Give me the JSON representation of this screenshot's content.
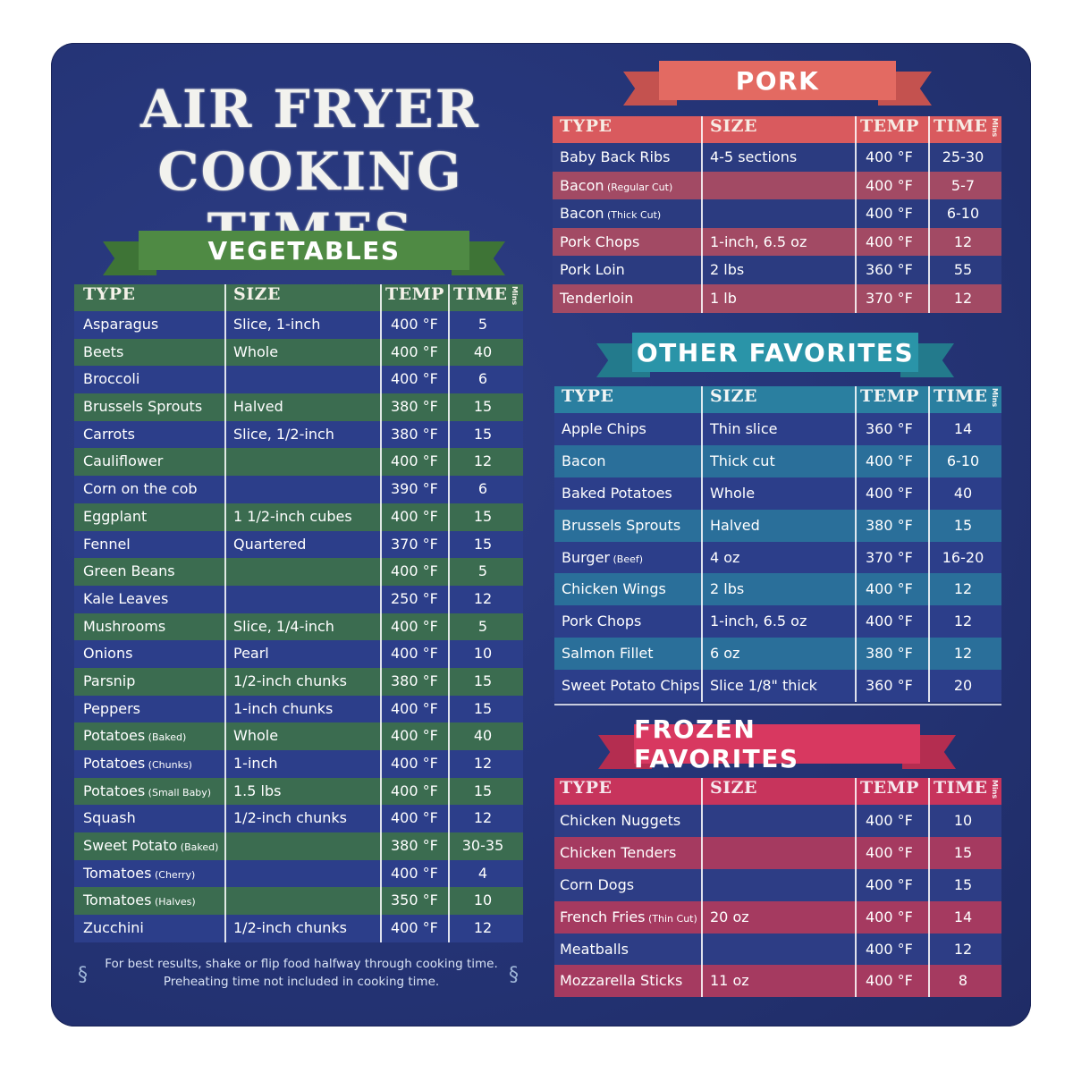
{
  "title": {
    "line1": "AIR FRYER",
    "line2": "COOKING TIMES"
  },
  "headers": {
    "type": "TYPE",
    "size": "SIZE",
    "temp": "TEMP",
    "time": "TIME",
    "mins": "Mins"
  },
  "unit": "°F",
  "colors": {
    "board": "#26367a",
    "veg_banner": "#4f8a44",
    "veg_header": "#3f7050",
    "pork_banner": "#e36a62",
    "pork_header": "#d95a5e",
    "other_banner": "#2a94a8",
    "other_header": "#2a7fa0",
    "frozen_banner": "#d83860",
    "frozen_header": "#c7345c"
  },
  "vegetables": {
    "heading": "VEGETABLES",
    "rows": [
      {
        "type": "Asparagus",
        "note": "",
        "size": "Slice, 1-inch",
        "temp": "400",
        "time": "5"
      },
      {
        "type": "Beets",
        "note": "",
        "size": "Whole",
        "temp": "400",
        "time": "40"
      },
      {
        "type": "Broccoli",
        "note": "",
        "size": "",
        "temp": "400",
        "time": "6"
      },
      {
        "type": "Brussels Sprouts",
        "note": "",
        "size": "Halved",
        "temp": "380",
        "time": "15"
      },
      {
        "type": "Carrots",
        "note": "",
        "size": "Slice, 1/2-inch",
        "temp": "380",
        "time": "15"
      },
      {
        "type": "Cauliflower",
        "note": "",
        "size": "",
        "temp": "400",
        "time": "12"
      },
      {
        "type": "Corn on the cob",
        "note": "",
        "size": "",
        "temp": "390",
        "time": "6"
      },
      {
        "type": "Eggplant",
        "note": "",
        "size": "1 1/2-inch cubes",
        "temp": "400",
        "time": "15"
      },
      {
        "type": "Fennel",
        "note": "",
        "size": "Quartered",
        "temp": "370",
        "time": "15"
      },
      {
        "type": "Green Beans",
        "note": "",
        "size": "",
        "temp": "400",
        "time": "5"
      },
      {
        "type": "Kale Leaves",
        "note": "",
        "size": "",
        "temp": "250",
        "time": "12"
      },
      {
        "type": "Mushrooms",
        "note": "",
        "size": "Slice, 1/4-inch",
        "temp": "400",
        "time": "5"
      },
      {
        "type": "Onions",
        "note": "",
        "size": "Pearl",
        "temp": "400",
        "time": "10"
      },
      {
        "type": "Parsnip",
        "note": "",
        "size": "1/2-inch chunks",
        "temp": "380",
        "time": "15"
      },
      {
        "type": "Peppers",
        "note": "",
        "size": "1-inch chunks",
        "temp": "400",
        "time": "15"
      },
      {
        "type": "Potatoes",
        "note": "(Baked)",
        "size": "Whole",
        "temp": "400",
        "time": "40"
      },
      {
        "type": "Potatoes",
        "note": "(Chunks)",
        "size": "1-inch",
        "temp": "400",
        "time": "12"
      },
      {
        "type": "Potatoes",
        "note": "(Small Baby)",
        "size": "1.5 lbs",
        "temp": "400",
        "time": "15"
      },
      {
        "type": "Squash",
        "note": "",
        "size": "1/2-inch chunks",
        "temp": "400",
        "time": "12"
      },
      {
        "type": "Sweet Potato",
        "note": "(Baked)",
        "size": "",
        "temp": "380",
        "time": "30-35"
      },
      {
        "type": "Tomatoes",
        "note": "(Cherry)",
        "size": "",
        "temp": "400",
        "time": "4"
      },
      {
        "type": "Tomatoes",
        "note": "(Halves)",
        "size": "",
        "temp": "350",
        "time": "10"
      },
      {
        "type": "Zucchini",
        "note": "",
        "size": "1/2-inch chunks",
        "temp": "400",
        "time": "12"
      }
    ]
  },
  "pork": {
    "heading": "PORK",
    "rows": [
      {
        "type": "Baby Back Ribs",
        "note": "",
        "size": "4-5 sections",
        "temp": "400",
        "time": "25-30"
      },
      {
        "type": "Bacon",
        "note": "(Regular Cut)",
        "size": "",
        "temp": "400",
        "time": "5-7"
      },
      {
        "type": "Bacon",
        "note": "(Thick Cut)",
        "size": "",
        "temp": "400",
        "time": "6-10"
      },
      {
        "type": "Pork Chops",
        "note": "",
        "size": "1-inch, 6.5 oz",
        "temp": "400",
        "time": "12"
      },
      {
        "type": "Pork Loin",
        "note": "",
        "size": "2 lbs",
        "temp": "360",
        "time": "55"
      },
      {
        "type": "Tenderloin",
        "note": "",
        "size": "1 lb",
        "temp": "370",
        "time": "12"
      }
    ]
  },
  "other": {
    "heading": "OTHER FAVORITES",
    "rows": [
      {
        "type": "Apple Chips",
        "note": "",
        "size": "Thin slice",
        "temp": "360",
        "time": "14"
      },
      {
        "type": "Bacon",
        "note": "",
        "size": "Thick cut",
        "temp": "400",
        "time": "6-10"
      },
      {
        "type": "Baked Potatoes",
        "note": "",
        "size": "Whole",
        "temp": "400",
        "time": "40"
      },
      {
        "type": "Brussels Sprouts",
        "note": "",
        "size": "Halved",
        "temp": "380",
        "time": "15"
      },
      {
        "type": "Burger",
        "note": "(Beef)",
        "size": "4 oz",
        "temp": "370",
        "time": "16-20"
      },
      {
        "type": "Chicken Wings",
        "note": "",
        "size": "2 lbs",
        "temp": "400",
        "time": "12"
      },
      {
        "type": "Pork Chops",
        "note": "",
        "size": "1-inch, 6.5 oz",
        "temp": "400",
        "time": "12"
      },
      {
        "type": "Salmon Fillet",
        "note": "",
        "size": "6 oz",
        "temp": "380",
        "time": "12"
      },
      {
        "type": "Sweet Potato Chips",
        "note": "",
        "size": "Slice 1/8\" thick",
        "temp": "360",
        "time": "20"
      }
    ]
  },
  "frozen": {
    "heading": "FROZEN FAVORITES",
    "rows": [
      {
        "type": "Chicken Nuggets",
        "note": "",
        "size": "",
        "temp": "400",
        "time": "10"
      },
      {
        "type": "Chicken Tenders",
        "note": "",
        "size": "",
        "temp": "400",
        "time": "15"
      },
      {
        "type": "Corn Dogs",
        "note": "",
        "size": "",
        "temp": "400",
        "time": "15"
      },
      {
        "type": "French Fries",
        "note": "(Thin Cut)",
        "size": "20 oz",
        "temp": "400",
        "time": "14"
      },
      {
        "type": "Meatballs",
        "note": "",
        "size": "",
        "temp": "400",
        "time": "12"
      },
      {
        "type": "Mozzarella Sticks",
        "note": "",
        "size": "11 oz",
        "temp": "400",
        "time": "8"
      }
    ]
  },
  "footnote": {
    "line1": "For best results, shake or flip food halfway through cooking time.",
    "line2": "Preheating time not included in cooking time."
  }
}
